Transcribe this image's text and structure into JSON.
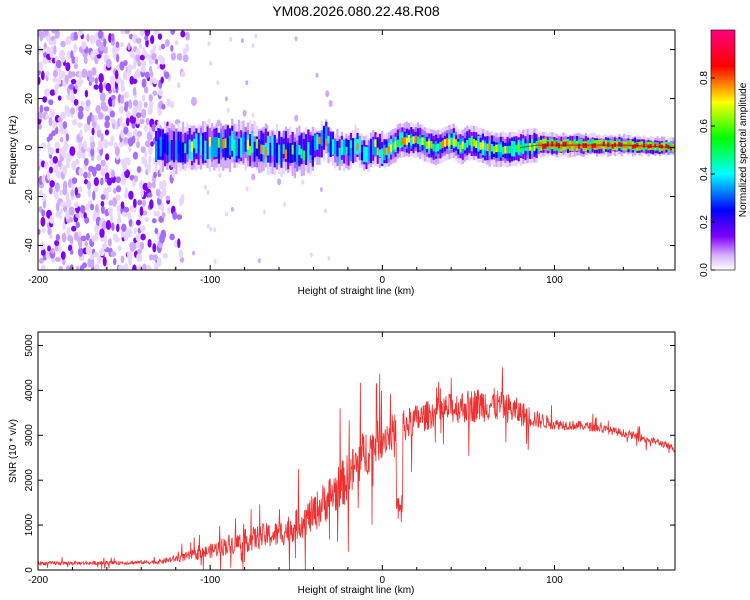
{
  "title": "YM08.2026.080.22.48.R08",
  "chart_data": [
    {
      "type": "heatmap",
      "xlabel": "Height of straight line (km)",
      "ylabel": "Frequency (Hz)",
      "xlim": [
        -200,
        170
      ],
      "ylim": [
        -50,
        48
      ],
      "x_ticks": [
        -200,
        -100,
        0,
        100
      ],
      "y_ticks": [
        -40,
        -20,
        0,
        20,
        40
      ],
      "colorbar": {
        "label": "Normalized spectral amplitude",
        "range": [
          0,
          1
        ],
        "ticks": [
          "0.0",
          "0.2",
          "0.4",
          "0.6",
          "0.8"
        ],
        "tick_values": [
          0,
          0.2,
          0.4,
          0.6,
          0.8
        ],
        "colors": [
          "#ffffff",
          "#8000ff",
          "#0000ff",
          "#00ffff",
          "#00ff00",
          "#ffff00",
          "#ff0000",
          "#ff0080"
        ]
      },
      "ridge": {
        "description": "dominant frequency trace vs height",
        "x": [
          -130,
          -110,
          -90,
          -70,
          -50,
          -40,
          -33,
          -30,
          -25,
          -20,
          -15,
          -10,
          -5,
          0,
          5,
          10,
          20,
          30,
          40,
          45,
          50,
          60,
          70,
          80,
          90,
          100,
          120,
          140,
          170
        ],
        "y": [
          0,
          0,
          1,
          0,
          -2,
          0,
          4,
          0,
          -2,
          -1,
          1,
          -2,
          0,
          -2,
          0,
          3,
          3,
          0,
          3,
          0,
          2,
          0,
          -1,
          0,
          1,
          1,
          1,
          1,
          0
        ]
      }
    },
    {
      "type": "line",
      "xlabel": "Height of straight line (km)",
      "ylabel": "SNR (10 * v/v)",
      "xlim": [
        -200,
        170
      ],
      "ylim": [
        0,
        5300
      ],
      "x_ticks": [
        -200,
        -100,
        0,
        100
      ],
      "y_ticks": [
        0,
        1000,
        2000,
        3000,
        4000,
        5000
      ],
      "color": "#f03030",
      "envelope": {
        "x": [
          -200,
          -150,
          -130,
          -120,
          -110,
          -100,
          -90,
          -80,
          -70,
          -60,
          -50,
          -40,
          -30,
          -20,
          -10,
          0,
          10,
          20,
          30,
          40,
          50,
          60,
          70,
          80,
          90,
          100,
          120,
          140,
          160,
          170
        ],
        "mean": [
          150,
          160,
          180,
          250,
          330,
          420,
          560,
          640,
          750,
          800,
          1000,
          1250,
          1650,
          2050,
          2600,
          2950,
          3150,
          3350,
          3500,
          3600,
          3650,
          3700,
          3650,
          3500,
          3350,
          3250,
          3200,
          3050,
          2850,
          2700
        ],
        "spread": [
          80,
          80,
          100,
          160,
          240,
          320,
          460,
          520,
          560,
          600,
          700,
          850,
          1000,
          1100,
          1100,
          900,
          750,
          700,
          650,
          700,
          750,
          800,
          700,
          600,
          400,
          250,
          200,
          180,
          160,
          150
        ]
      }
    }
  ]
}
